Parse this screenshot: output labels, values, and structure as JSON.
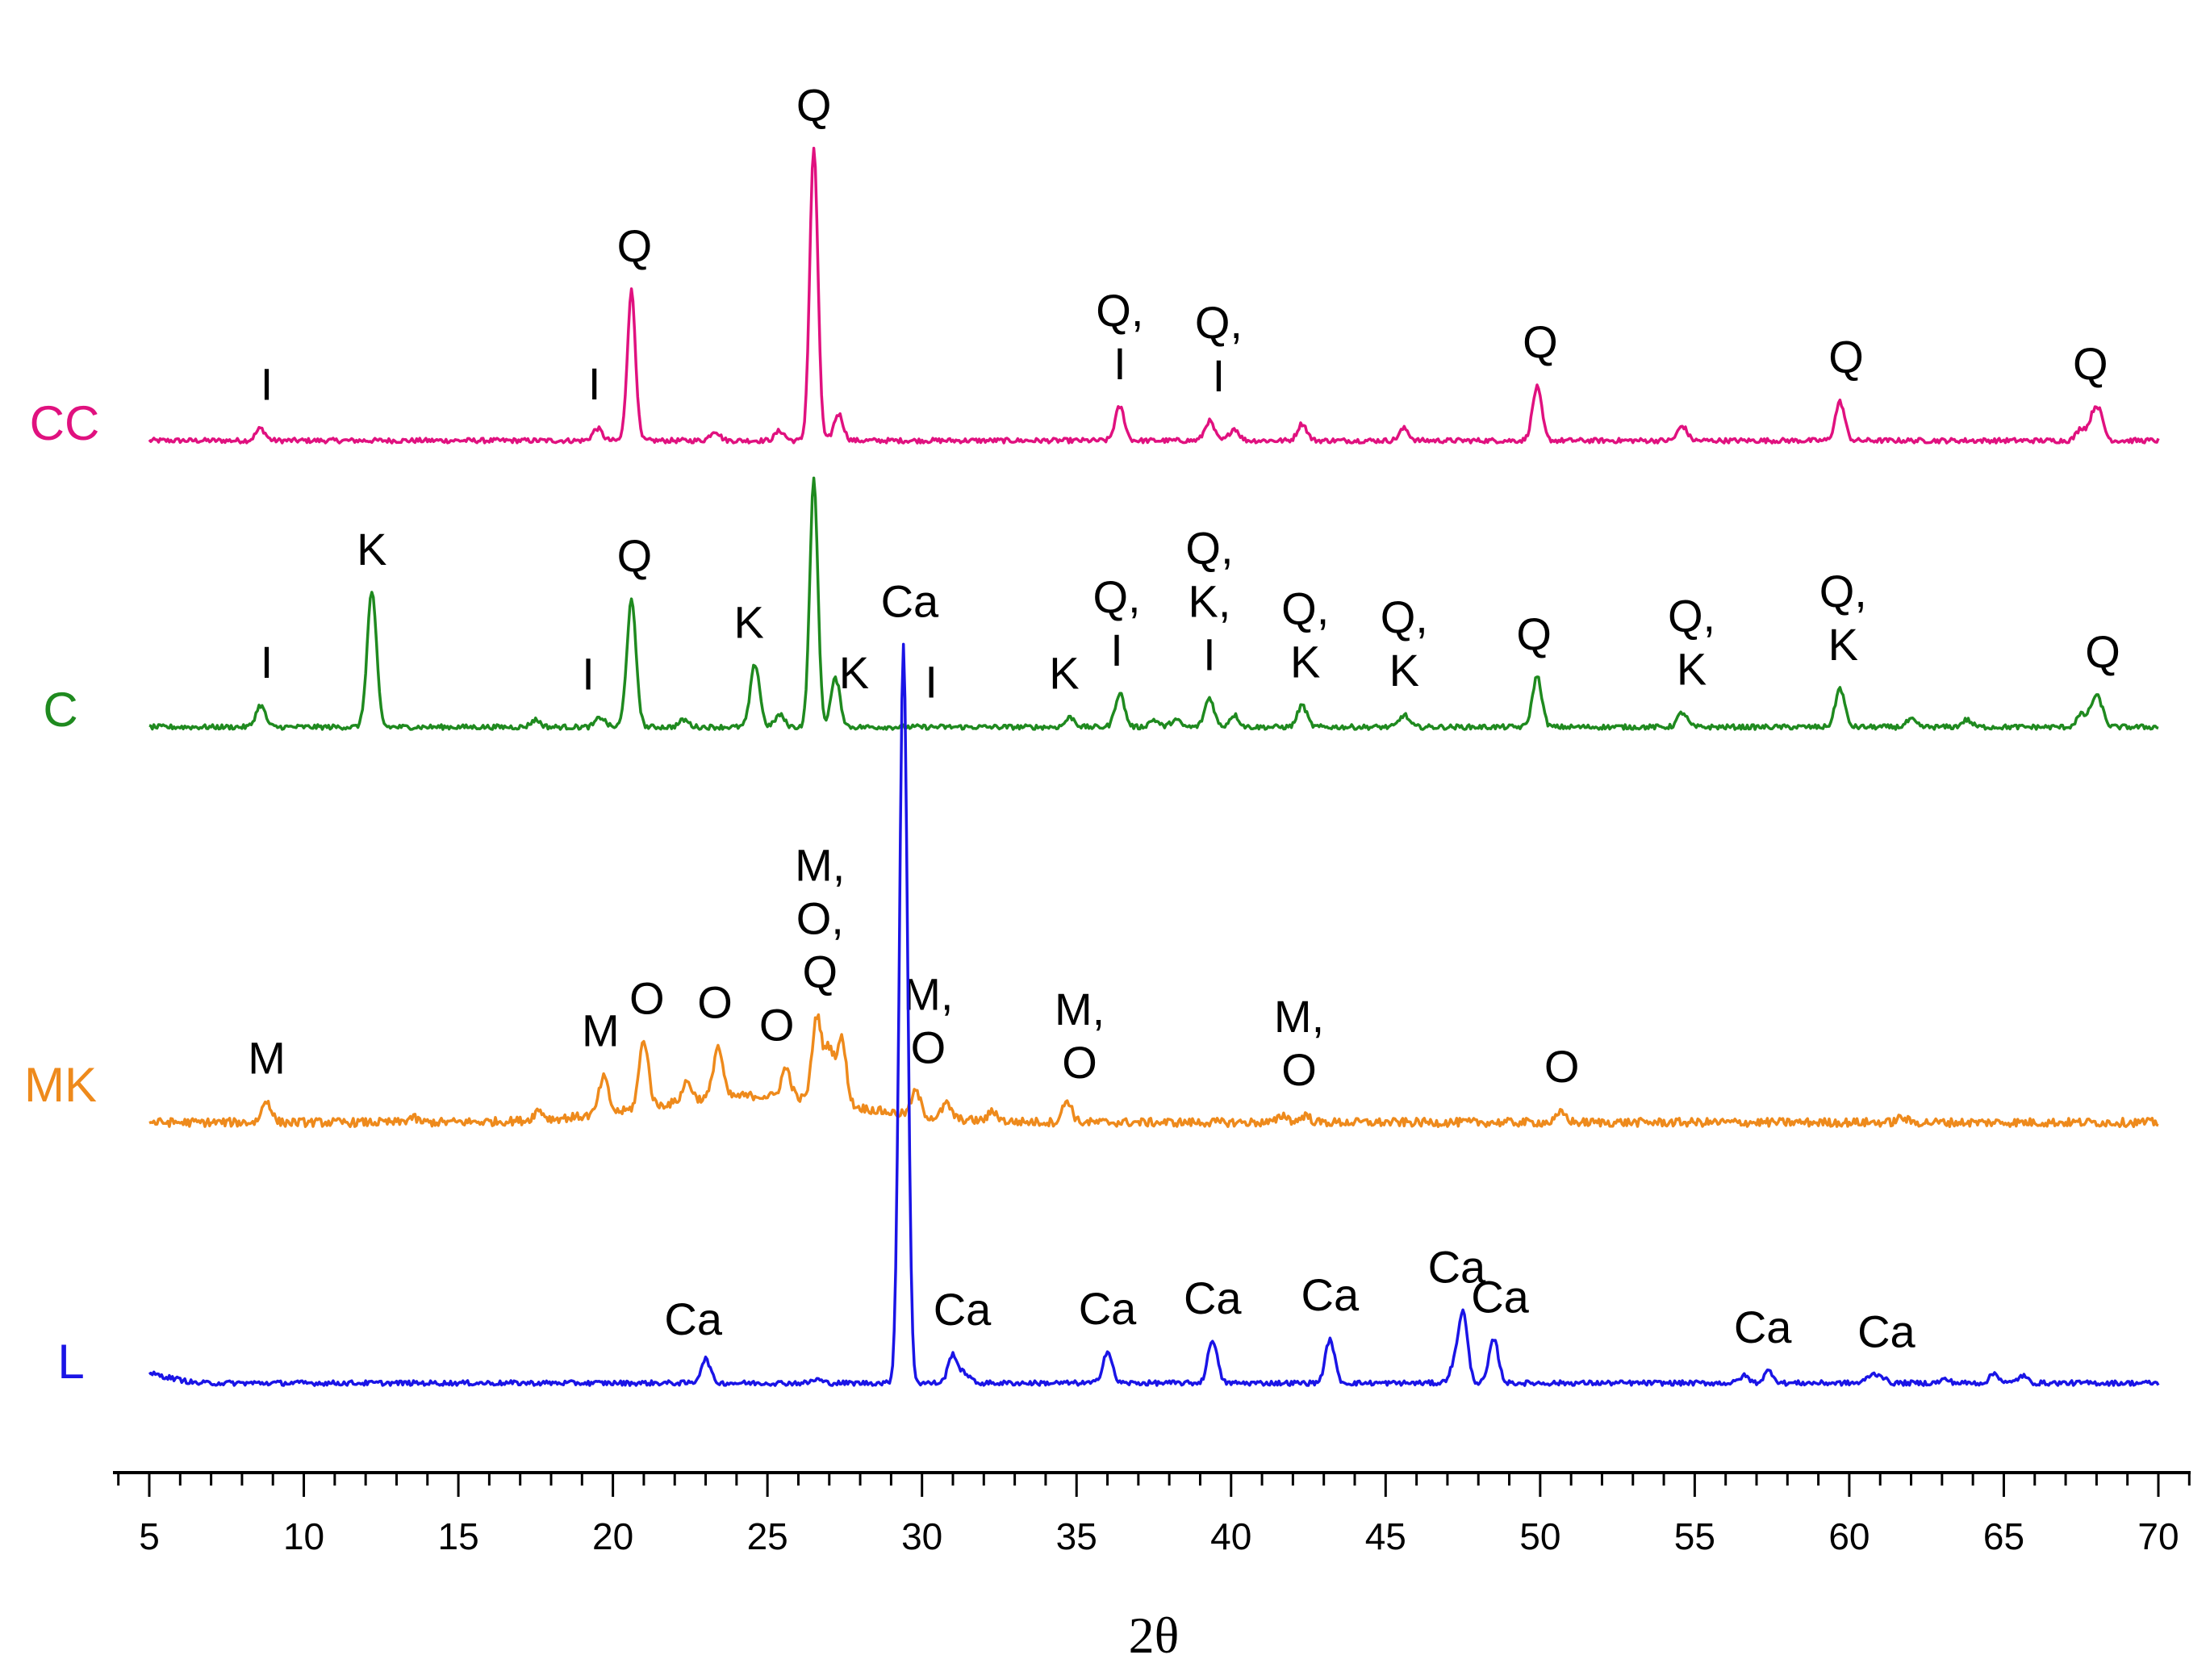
{
  "chart_data": {
    "type": "line",
    "title": "",
    "xlabel": "2θ",
    "ylabel": "",
    "xlim": [
      5,
      70
    ],
    "x_ticks": [
      "5",
      "10",
      "15",
      "20",
      "25",
      "30",
      "35",
      "40",
      "45",
      "50",
      "55",
      "60",
      "65",
      "70"
    ],
    "x_tick_values": [
      5,
      10,
      15,
      20,
      25,
      30,
      35,
      40,
      45,
      50,
      55,
      60,
      65,
      70
    ],
    "series": [
      {
        "name": "CC",
        "color": "#e0117f",
        "baseline": 0.3,
        "peaks": [
          {
            "x": 8.6,
            "h": 0.5
          },
          {
            "x": 19.5,
            "h": 0.5
          },
          {
            "x": 20.6,
            "h": 6.2
          },
          {
            "x": 23.3,
            "h": 0.4
          },
          {
            "x": 25.4,
            "h": 0.4
          },
          {
            "x": 26.5,
            "h": 12.1
          },
          {
            "x": 27.3,
            "h": 1.1
          },
          {
            "x": 36.4,
            "h": 1.4
          },
          {
            "x": 39.3,
            "h": 0.8
          },
          {
            "x": 40.1,
            "h": 0.5
          },
          {
            "x": 42.3,
            "h": 0.7
          },
          {
            "x": 45.6,
            "h": 0.5
          },
          {
            "x": 49.9,
            "h": 2.2
          },
          {
            "x": 54.6,
            "h": 0.6
          },
          {
            "x": 59.7,
            "h": 1.6
          },
          {
            "x": 67.5,
            "h": 0.5
          },
          {
            "x": 67.9,
            "h": 0.9
          },
          {
            "x": 68.1,
            "h": 0.9
          }
        ],
        "annotations": [
          {
            "x": 8.8,
            "lines": [
              "I"
            ]
          },
          {
            "x": 19.4,
            "lines": [
              "I"
            ]
          },
          {
            "x": 20.7,
            "lines": [
              "Q"
            ]
          },
          {
            "x": 26.5,
            "lines": [
              "Q"
            ]
          },
          {
            "x": 36.4,
            "lines": [
              "Q,",
              "I"
            ]
          },
          {
            "x": 39.6,
            "lines": [
              "Q,",
              "I"
            ]
          },
          {
            "x": 50.0,
            "lines": [
              "Q"
            ]
          },
          {
            "x": 59.9,
            "lines": [
              "Q"
            ]
          },
          {
            "x": 67.8,
            "lines": [
              "Q"
            ]
          }
        ]
      },
      {
        "name": "C",
        "color": "#1f8a1f",
        "baseline": 0.3,
        "peaks": [
          {
            "x": 8.6,
            "h": 0.9
          },
          {
            "x": 12.2,
            "h": 5.6
          },
          {
            "x": 17.5,
            "h": 0.3
          },
          {
            "x": 19.6,
            "h": 0.4
          },
          {
            "x": 20.6,
            "h": 5.2
          },
          {
            "x": 22.3,
            "h": 0.3
          },
          {
            "x": 24.6,
            "h": 2.6
          },
          {
            "x": 25.4,
            "h": 0.5
          },
          {
            "x": 26.5,
            "h": 10.2
          },
          {
            "x": 27.2,
            "h": 2.0
          },
          {
            "x": 34.8,
            "h": 0.4
          },
          {
            "x": 36.4,
            "h": 1.4
          },
          {
            "x": 37.5,
            "h": 0.3
          },
          {
            "x": 38.2,
            "h": 0.3
          },
          {
            "x": 39.3,
            "h": 1.2
          },
          {
            "x": 40.1,
            "h": 0.5
          },
          {
            "x": 42.3,
            "h": 0.9
          },
          {
            "x": 45.6,
            "h": 0.5
          },
          {
            "x": 49.9,
            "h": 2.1
          },
          {
            "x": 54.6,
            "h": 0.6
          },
          {
            "x": 59.7,
            "h": 1.6
          },
          {
            "x": 62.0,
            "h": 0.3
          },
          {
            "x": 63.8,
            "h": 0.3
          },
          {
            "x": 67.5,
            "h": 0.5
          },
          {
            "x": 67.9,
            "h": 0.8
          },
          {
            "x": 68.1,
            "h": 0.8
          }
        ],
        "annotations": [
          {
            "x": 8.8,
            "lines": [
              "I"
            ]
          },
          {
            "x": 12.2,
            "lines": [
              "K"
            ]
          },
          {
            "x": 19.2,
            "lines": [
              "I"
            ]
          },
          {
            "x": 20.7,
            "lines": [
              "Q"
            ]
          },
          {
            "x": 24.4,
            "lines": [
              "K"
            ]
          },
          {
            "x": 27.8,
            "lines": [
              "K"
            ]
          },
          {
            "x": 30.3,
            "lines": [
              "I"
            ]
          },
          {
            "x": 34.6,
            "lines": [
              "K"
            ]
          },
          {
            "x": 36.3,
            "lines": [
              "Q,",
              "I"
            ]
          },
          {
            "x": 39.3,
            "lines": [
              "Q,",
              "K,",
              "I"
            ]
          },
          {
            "x": 42.4,
            "lines": [
              "Q,",
              "K"
            ]
          },
          {
            "x": 45.6,
            "lines": [
              "Q,",
              "K"
            ]
          },
          {
            "x": 49.8,
            "lines": [
              "Q"
            ]
          },
          {
            "x": 54.9,
            "lines": [
              "Q,",
              "K"
            ]
          },
          {
            "x": 59.8,
            "lines": [
              "Q,",
              "K"
            ]
          },
          {
            "x": 68.2,
            "lines": [
              "Q"
            ]
          }
        ]
      },
      {
        "name": "MK",
        "color": "#ee8a1c",
        "baseline": 0.3,
        "peaks": [
          {
            "x": 8.8,
            "h": 0.9
          },
          {
            "x": 13.5,
            "h": 0.2
          },
          {
            "x": 17.6,
            "h": 0.4
          },
          {
            "x": 19.7,
            "h": 1.5
          },
          {
            "x": 21.0,
            "h": 2.8
          },
          {
            "x": 22.4,
            "h": 0.8
          },
          {
            "x": 23.4,
            "h": 2.1
          },
          {
            "x": 25.6,
            "h": 1.2
          },
          {
            "x": 26.6,
            "h": 3.5
          },
          {
            "x": 27.0,
            "h": 2.2
          },
          {
            "x": 27.4,
            "h": 2.7
          },
          {
            "x": 29.8,
            "h": 1.0
          },
          {
            "x": 30.8,
            "h": 0.6
          },
          {
            "x": 32.3,
            "h": 0.4
          },
          {
            "x": 34.7,
            "h": 0.9
          },
          {
            "x": 41.7,
            "h": 0.3
          },
          {
            "x": 42.4,
            "h": 0.3
          },
          {
            "x": 50.7,
            "h": 0.4
          },
          {
            "x": 61.7,
            "h": 0.2
          }
        ],
        "annotations": [
          {
            "x": 8.8,
            "lines": [
              "M"
            ]
          },
          {
            "x": 19.6,
            "lines": [
              "M"
            ]
          },
          {
            "x": 21.1,
            "lines": [
              "O"
            ]
          },
          {
            "x": 23.3,
            "lines": [
              "O"
            ]
          },
          {
            "x": 25.3,
            "lines": [
              "O"
            ]
          },
          {
            "x": 26.7,
            "lines": [
              "M,",
              "O,",
              "Q"
            ]
          },
          {
            "x": 30.2,
            "lines": [
              "M,",
              "O"
            ]
          },
          {
            "x": 35.1,
            "lines": [
              "M,",
              "O"
            ]
          },
          {
            "x": 42.2,
            "lines": [
              "M,",
              "O"
            ]
          },
          {
            "x": 50.7,
            "lines": [
              "O"
            ]
          }
        ]
      },
      {
        "name": "L",
        "color": "#1a14e6",
        "baseline": 0.2,
        "peaks": [
          {
            "x": 23.0,
            "h": 1.0
          },
          {
            "x": 26.6,
            "h": 0.15
          },
          {
            "x": 29.4,
            "h": 30.5
          },
          {
            "x": 31.0,
            "h": 1.2
          },
          {
            "x": 31.4,
            "h": 0.4
          },
          {
            "x": 36.0,
            "h": 1.3
          },
          {
            "x": 39.4,
            "h": 1.8
          },
          {
            "x": 43.2,
            "h": 1.8
          },
          {
            "x": 47.2,
            "h": 0.6
          },
          {
            "x": 47.5,
            "h": 2.9
          },
          {
            "x": 48.5,
            "h": 1.8
          },
          {
            "x": 56.6,
            "h": 0.3
          },
          {
            "x": 57.4,
            "h": 0.5
          },
          {
            "x": 60.7,
            "h": 0.3
          },
          {
            "x": 61.0,
            "h": 0.3
          },
          {
            "x": 63.1,
            "h": 0.15
          },
          {
            "x": 64.7,
            "h": 0.4
          },
          {
            "x": 65.6,
            "h": 0.3
          }
        ],
        "annotations": [
          {
            "x": 22.6,
            "lines": [
              "Ca"
            ]
          },
          {
            "x": 29.6,
            "lines": [
              "Ca"
            ]
          },
          {
            "x": 31.3,
            "lines": [
              "Ca"
            ]
          },
          {
            "x": 36.0,
            "lines": [
              "Ca"
            ]
          },
          {
            "x": 39.4,
            "lines": [
              "Ca"
            ]
          },
          {
            "x": 43.2,
            "lines": [
              "Ca"
            ]
          },
          {
            "x": 47.3,
            "lines": [
              "Ca"
            ]
          },
          {
            "x": 48.7,
            "lines": [
              "Ca"
            ]
          },
          {
            "x": 57.2,
            "lines": [
              "Ca"
            ]
          },
          {
            "x": 61.2,
            "lines": [
              "Ca"
            ]
          }
        ]
      }
    ]
  }
}
